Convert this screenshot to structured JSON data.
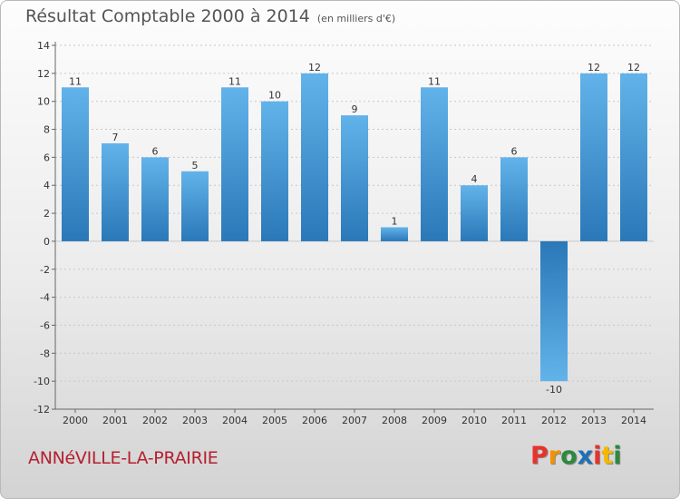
{
  "header": {
    "title": "Résultat Comptable 2000 à 2014",
    "unit": "(en milliers d'€)"
  },
  "footer": {
    "commune": "ANNéVILLE-LA-PRAIRIE",
    "logo_letters": [
      "P",
      "r",
      "o",
      "x",
      "i",
      "t",
      "i"
    ],
    "logo_colors": [
      "#e8332a",
      "#f29200",
      "#2b8a3e",
      "#1f6fb5",
      "#e8332a",
      "#f5b800",
      "#2b8a3e"
    ]
  },
  "colors": {
    "bar_light": "#62b3ea",
    "bar_dark": "#2a78b8",
    "grid": "#c8c8c8"
  },
  "chart_data": {
    "type": "bar",
    "title": "Résultat Comptable 2000 à 2014",
    "xlabel": "",
    "ylabel": "en milliers d'€",
    "categories": [
      "2000",
      "2001",
      "2002",
      "2003",
      "2004",
      "2005",
      "2006",
      "2007",
      "2008",
      "2009",
      "2010",
      "2011",
      "2012",
      "2013",
      "2014"
    ],
    "values": [
      11,
      7,
      6,
      5,
      11,
      10,
      12,
      9,
      1,
      11,
      4,
      6,
      -10,
      12,
      12
    ],
    "value_labels": [
      "11",
      "7",
      "6",
      "5",
      "11",
      "10",
      "12",
      "9",
      "1",
      "11",
      "4",
      "6",
      "-10",
      "12",
      "12"
    ],
    "ylim": [
      -12,
      14
    ],
    "yticks": [
      14,
      12,
      10,
      8,
      6,
      4,
      2,
      0,
      -2,
      -4,
      -6,
      -8,
      -10,
      -12
    ],
    "ytick_labels": [
      "14",
      "12",
      "10",
      "8",
      "6",
      "4",
      "2",
      "0",
      "-2",
      "-4",
      "-6",
      "-8",
      "-10",
      "-12"
    ],
    "grid": true
  }
}
